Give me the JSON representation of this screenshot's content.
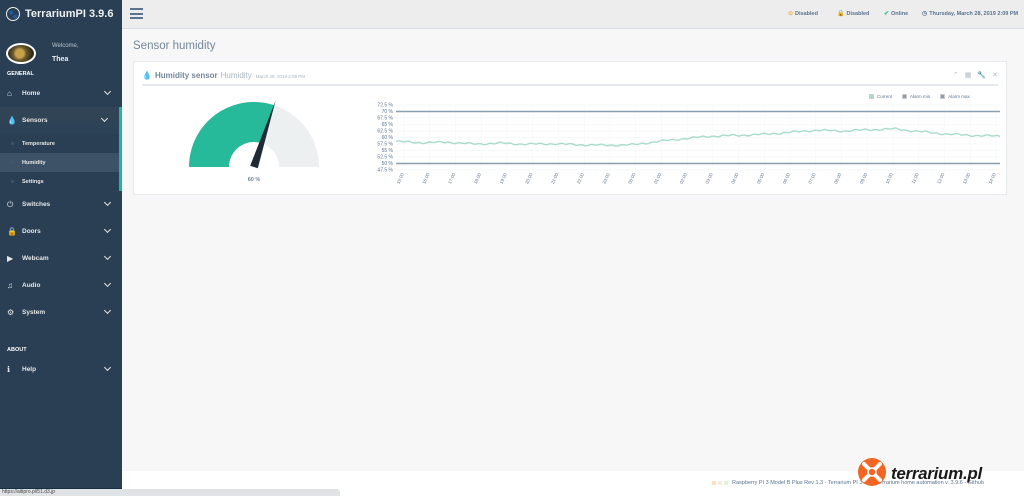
{
  "app": {
    "title": "TerrariumPI 3.9.6"
  },
  "profile": {
    "welcome": "Welcome,",
    "name": "Thea"
  },
  "sidebar": {
    "general_label": "GENERAL",
    "about_label": "ABOUT",
    "items": [
      {
        "label": "Home",
        "icon": "home-icon"
      },
      {
        "label": "Sensors",
        "icon": "droplet-icon"
      },
      {
        "label": "Switches",
        "icon": "power-icon"
      },
      {
        "label": "Doors",
        "icon": "lock-icon"
      },
      {
        "label": "Webcam",
        "icon": "video-icon"
      },
      {
        "label": "Audio",
        "icon": "music-icon"
      },
      {
        "label": "System",
        "icon": "gear-icon"
      }
    ],
    "sensors_sub": [
      {
        "label": "Temperature"
      },
      {
        "label": "Humidity"
      },
      {
        "label": "Settings"
      }
    ],
    "help": {
      "label": "Help",
      "icon": "info-icon"
    }
  },
  "topbar": {
    "status1": "Disabled",
    "status2": "Disabled",
    "status3": "Online",
    "datetime": "Thursday, March 28, 2019 2:09 PM",
    "colors": {
      "warning": "#f0ad4e",
      "success": "#26b99a"
    }
  },
  "page": {
    "title": "Sensor humidity"
  },
  "panel": {
    "title": "Humidity sensor",
    "subtitle": "Humidity",
    "date": "March 28, 2019 2:09 PM"
  },
  "gauge": {
    "value_label": "60 %",
    "value": 60,
    "max": 100,
    "fill": "#26b99a",
    "track": "#ecf0f1"
  },
  "chart_data": {
    "type": "line",
    "legend": [
      "Current",
      "Alarm min",
      "Alarm max"
    ],
    "y_ticks": [
      "72.5 %",
      "70 %",
      "67.5 %",
      "65 %",
      "62.5 %",
      "60 %",
      "57.5 %",
      "55 %",
      "52.5 %",
      "50 %",
      "47.5 %"
    ],
    "x_ticks": [
      "15:00",
      "16:00",
      "17:00",
      "18:00",
      "19:00",
      "20:00",
      "21:00",
      "22:00",
      "23:00",
      "00:00",
      "01:00",
      "02:00",
      "03:00",
      "04:00",
      "05:00",
      "06:00",
      "07:00",
      "08:00",
      "09:00",
      "10:00",
      "11:00",
      "12:00",
      "13:00",
      "14:00"
    ],
    "ylim": [
      47.5,
      72.5
    ],
    "alarm_min": 50,
    "alarm_max": 70,
    "series": [
      {
        "name": "Current",
        "values": [
          58.5,
          58,
          58.2,
          57.5,
          57.8,
          57.4,
          57.6,
          57.2,
          57.0,
          57.2,
          58.5,
          59.6,
          60.5,
          60.8,
          61.2,
          62.0,
          62.8,
          62.5,
          63.0,
          63.3,
          62.2,
          61.3,
          60.8,
          60.5
        ]
      }
    ],
    "colors": {
      "current": "#a8dcc9",
      "alarm": "#8a9eb0"
    }
  },
  "footer": {
    "text": "Raspberry PI 3 Model B Plus Rev 1.3 - Terrarium PI 3.9.6 - Terrarium home automation v. 3.9.6 - Github",
    "watermark": "terrarium.pl"
  },
  "browser": {
    "status_url": "https://aitipro.pl/51.d3.jp"
  }
}
